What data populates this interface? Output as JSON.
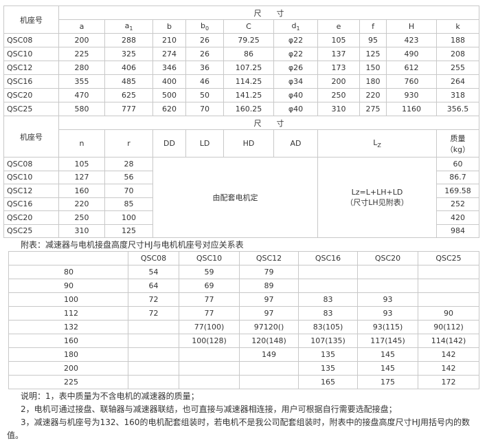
{
  "table1": {
    "header_model": "机座号",
    "header_dims": "尺　　寸",
    "columns": [
      "a",
      {
        "text": "a",
        "sub": "1"
      },
      "b",
      {
        "text": "b",
        "sub": "0"
      },
      "C",
      {
        "text": "d",
        "sub": "1"
      },
      "e",
      "f",
      "H",
      "k"
    ],
    "rows": [
      [
        "QSC08",
        "200",
        "288",
        "210",
        "26",
        "79.25",
        "φ22",
        "105",
        "95",
        "423",
        "188"
      ],
      [
        "QSC10",
        "225",
        "325",
        "274",
        "26",
        "86",
        "φ22",
        "137",
        "125",
        "490",
        "208"
      ],
      [
        "QSC12",
        "280",
        "406",
        "346",
        "36",
        "107.25",
        "φ26",
        "173",
        "150",
        "612",
        "255"
      ],
      [
        "QSC16",
        "355",
        "485",
        "400",
        "46",
        "114.25",
        "φ34",
        "200",
        "180",
        "760",
        "264"
      ],
      [
        "QSC20",
        "470",
        "625",
        "500",
        "50",
        "141.25",
        "φ40",
        "250",
        "220",
        "930",
        "318"
      ],
      [
        "QSC25",
        "580",
        "777",
        "620",
        "70",
        "160.25",
        "φ40",
        "310",
        "275",
        "1160",
        "356.5"
      ]
    ]
  },
  "table2": {
    "header_model": "机座号",
    "header_dims": "尺　　寸",
    "columns": [
      "n",
      "r",
      "DD",
      "LD",
      "HD",
      "AD"
    ],
    "lz": {
      "text": "L",
      "sub": "Z"
    },
    "mass": [
      "质量",
      "（kg）"
    ],
    "rows": [
      [
        "QSC08",
        "105",
        "28",
        "60"
      ],
      [
        "QSC10",
        "127",
        "56",
        "86.7"
      ],
      [
        "QSC12",
        "160",
        "70",
        "169.58"
      ],
      [
        "QSC16",
        "220",
        "85",
        "252"
      ],
      [
        "QSC20",
        "250",
        "100",
        "420"
      ],
      [
        "QSC25",
        "310",
        "125",
        "984"
      ]
    ],
    "merged_motor": "由配套电机定",
    "merged_lz": [
      "Lz=L+LH+LD",
      "（尺寸LH见附表）"
    ]
  },
  "caption": "附表：减速器与电机接盘高度尺寸HJ与电机机座号对应关系表",
  "table3": {
    "columns": [
      "QSC08",
      "QSC10",
      "QSC12",
      "QSC16",
      "QSC20",
      "QSC25"
    ],
    "rows": [
      [
        "80",
        "54",
        "59",
        "79",
        null,
        null,
        null
      ],
      [
        "90",
        "64",
        "69",
        "89",
        null,
        null,
        null
      ],
      [
        "100",
        "72",
        "77",
        "97",
        "83",
        "93",
        null
      ],
      [
        "112",
        "72",
        "77",
        "97",
        "83",
        "93",
        "90"
      ],
      [
        "132",
        null,
        "77(100)",
        "97120()",
        "83(105)",
        "93(115)",
        "90(112)"
      ],
      [
        "160",
        null,
        "100(128)",
        "120(148)",
        "107(135)",
        "117(145)",
        "114(142)"
      ],
      [
        "180",
        null,
        null,
        "149",
        "135",
        "145",
        "142"
      ],
      [
        "200",
        null,
        null,
        null,
        "135",
        "145",
        "142"
      ],
      [
        "225",
        null,
        null,
        null,
        "165",
        "175",
        "172"
      ]
    ]
  },
  "notes": [
    "说明：1，表中质量为不含电机的减速器的质量；",
    "2，电机可通过接盘、联轴器与减速器联结，也可直接与减速器相连接，用户可根据自行需要选配接盘；",
    "3，减速器与机座号为132、160的电机配套组装时，若电机不是我公司配套组装时，附表中的接盘高度尺寸HJ用括号内的数值。"
  ]
}
